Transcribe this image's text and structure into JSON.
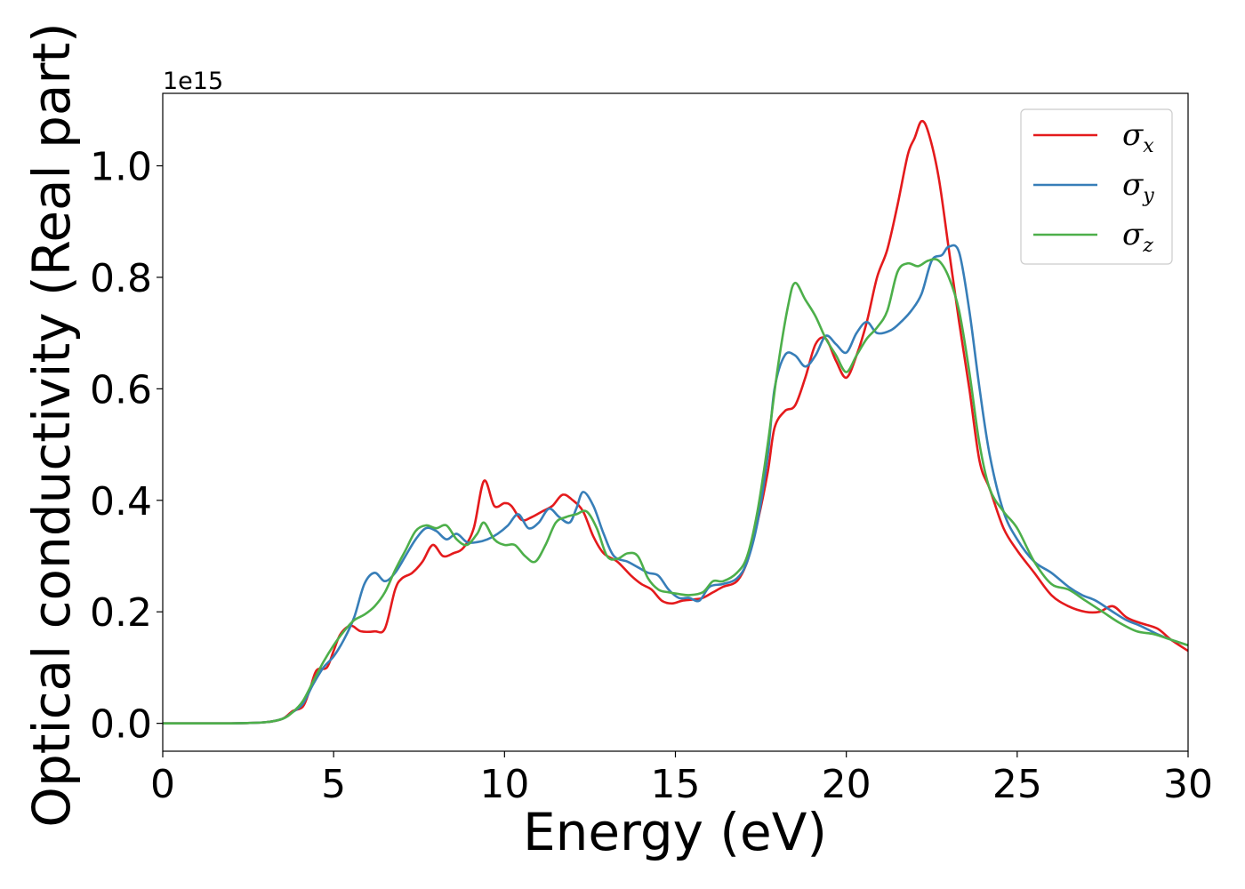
{
  "chart_data": {
    "type": "line",
    "title": "",
    "xlabel": "Energy (eV)",
    "ylabel": "Optical conductivity (Real part)",
    "y_offset_label": "1e15",
    "xlim": [
      0,
      30
    ],
    "ylim": [
      -0.05,
      1.13
    ],
    "x_ticks": [
      0,
      5,
      10,
      15,
      20,
      25,
      30
    ],
    "x_tick_labels": [
      "0",
      "5",
      "10",
      "15",
      "20",
      "25",
      "30"
    ],
    "y_ticks": [
      0.0,
      0.2,
      0.4,
      0.6,
      0.8,
      1.0
    ],
    "y_tick_labels": [
      "0.0",
      "0.2",
      "0.4",
      "0.6",
      "0.8",
      "1.0"
    ],
    "grid": false,
    "legend_position": "top-right",
    "series": [
      {
        "name": "σx",
        "symbol": "σ",
        "subscript": "x",
        "color": "#e41a1c",
        "points": [
          [
            0,
            0
          ],
          [
            2,
            0
          ],
          [
            3,
            0.002
          ],
          [
            3.5,
            0.008
          ],
          [
            3.8,
            0.022
          ],
          [
            4.1,
            0.03
          ],
          [
            4.3,
            0.06
          ],
          [
            4.5,
            0.095
          ],
          [
            4.8,
            0.1
          ],
          [
            5.0,
            0.13
          ],
          [
            5.2,
            0.16
          ],
          [
            5.5,
            0.175
          ],
          [
            5.8,
            0.165
          ],
          [
            6.2,
            0.165
          ],
          [
            6.5,
            0.17
          ],
          [
            6.8,
            0.24
          ],
          [
            7.0,
            0.26
          ],
          [
            7.3,
            0.27
          ],
          [
            7.6,
            0.29
          ],
          [
            7.9,
            0.32
          ],
          [
            8.2,
            0.3
          ],
          [
            8.5,
            0.305
          ],
          [
            8.8,
            0.315
          ],
          [
            9.1,
            0.35
          ],
          [
            9.4,
            0.435
          ],
          [
            9.7,
            0.39
          ],
          [
            10.0,
            0.395
          ],
          [
            10.2,
            0.39
          ],
          [
            10.5,
            0.365
          ],
          [
            10.8,
            0.37
          ],
          [
            11.1,
            0.38
          ],
          [
            11.4,
            0.39
          ],
          [
            11.7,
            0.41
          ],
          [
            12.0,
            0.4
          ],
          [
            12.3,
            0.38
          ],
          [
            12.6,
            0.335
          ],
          [
            12.9,
            0.305
          ],
          [
            13.3,
            0.29
          ],
          [
            13.7,
            0.265
          ],
          [
            14.0,
            0.25
          ],
          [
            14.3,
            0.24
          ],
          [
            14.6,
            0.22
          ],
          [
            14.9,
            0.215
          ],
          [
            15.2,
            0.22
          ],
          [
            15.5,
            0.222
          ],
          [
            15.8,
            0.225
          ],
          [
            16.1,
            0.235
          ],
          [
            16.4,
            0.245
          ],
          [
            16.8,
            0.255
          ],
          [
            17.1,
            0.29
          ],
          [
            17.4,
            0.36
          ],
          [
            17.7,
            0.45
          ],
          [
            17.9,
            0.53
          ],
          [
            18.2,
            0.56
          ],
          [
            18.5,
            0.57
          ],
          [
            18.8,
            0.62
          ],
          [
            19.1,
            0.68
          ],
          [
            19.4,
            0.69
          ],
          [
            19.7,
            0.65
          ],
          [
            20.0,
            0.62
          ],
          [
            20.3,
            0.66
          ],
          [
            20.6,
            0.72
          ],
          [
            20.9,
            0.8
          ],
          [
            21.2,
            0.85
          ],
          [
            21.5,
            0.93
          ],
          [
            21.8,
            1.02
          ],
          [
            22.0,
            1.05
          ],
          [
            22.2,
            1.08
          ],
          [
            22.4,
            1.06
          ],
          [
            22.7,
            0.98
          ],
          [
            23.0,
            0.85
          ],
          [
            23.3,
            0.72
          ],
          [
            23.6,
            0.6
          ],
          [
            23.9,
            0.47
          ],
          [
            24.2,
            0.42
          ],
          [
            24.6,
            0.35
          ],
          [
            25.0,
            0.31
          ],
          [
            25.5,
            0.27
          ],
          [
            26.0,
            0.23
          ],
          [
            26.5,
            0.21
          ],
          [
            27.0,
            0.2
          ],
          [
            27.4,
            0.2
          ],
          [
            27.8,
            0.21
          ],
          [
            28.2,
            0.19
          ],
          [
            28.6,
            0.18
          ],
          [
            29.1,
            0.17
          ],
          [
            29.5,
            0.15
          ],
          [
            30,
            0.13
          ]
        ]
      },
      {
        "name": "σy",
        "symbol": "σ",
        "subscript": "y",
        "color": "#377eb8",
        "points": [
          [
            0,
            0
          ],
          [
            2,
            0
          ],
          [
            3,
            0.002
          ],
          [
            3.5,
            0.008
          ],
          [
            3.8,
            0.02
          ],
          [
            4.1,
            0.035
          ],
          [
            4.4,
            0.07
          ],
          [
            4.7,
            0.1
          ],
          [
            5.0,
            0.12
          ],
          [
            5.3,
            0.15
          ],
          [
            5.6,
            0.19
          ],
          [
            5.9,
            0.25
          ],
          [
            6.2,
            0.27
          ],
          [
            6.5,
            0.255
          ],
          [
            6.8,
            0.27
          ],
          [
            7.1,
            0.3
          ],
          [
            7.4,
            0.33
          ],
          [
            7.7,
            0.35
          ],
          [
            8.0,
            0.345
          ],
          [
            8.3,
            0.33
          ],
          [
            8.6,
            0.34
          ],
          [
            8.9,
            0.325
          ],
          [
            9.2,
            0.325
          ],
          [
            9.5,
            0.33
          ],
          [
            9.8,
            0.34
          ],
          [
            10.1,
            0.355
          ],
          [
            10.4,
            0.375
          ],
          [
            10.7,
            0.35
          ],
          [
            11.0,
            0.36
          ],
          [
            11.3,
            0.385
          ],
          [
            11.6,
            0.37
          ],
          [
            11.9,
            0.36
          ],
          [
            12.1,
            0.385
          ],
          [
            12.3,
            0.415
          ],
          [
            12.6,
            0.39
          ],
          [
            12.9,
            0.34
          ],
          [
            13.2,
            0.3
          ],
          [
            13.6,
            0.29
          ],
          [
            13.9,
            0.28
          ],
          [
            14.2,
            0.27
          ],
          [
            14.5,
            0.265
          ],
          [
            14.8,
            0.24
          ],
          [
            15.1,
            0.225
          ],
          [
            15.4,
            0.225
          ],
          [
            15.7,
            0.22
          ],
          [
            16.0,
            0.245
          ],
          [
            16.4,
            0.25
          ],
          [
            16.8,
            0.26
          ],
          [
            17.1,
            0.29
          ],
          [
            17.4,
            0.36
          ],
          [
            17.7,
            0.48
          ],
          [
            17.9,
            0.6
          ],
          [
            18.2,
            0.66
          ],
          [
            18.5,
            0.66
          ],
          [
            18.8,
            0.64
          ],
          [
            19.1,
            0.66
          ],
          [
            19.4,
            0.695
          ],
          [
            19.7,
            0.68
          ],
          [
            20.0,
            0.665
          ],
          [
            20.3,
            0.7
          ],
          [
            20.6,
            0.72
          ],
          [
            20.9,
            0.7
          ],
          [
            21.3,
            0.705
          ],
          [
            21.6,
            0.72
          ],
          [
            21.9,
            0.74
          ],
          [
            22.2,
            0.77
          ],
          [
            22.5,
            0.83
          ],
          [
            22.8,
            0.84
          ],
          [
            23.0,
            0.855
          ],
          [
            23.3,
            0.845
          ],
          [
            23.6,
            0.74
          ],
          [
            23.9,
            0.6
          ],
          [
            24.2,
            0.48
          ],
          [
            24.6,
            0.38
          ],
          [
            25.0,
            0.33
          ],
          [
            25.5,
            0.29
          ],
          [
            26.0,
            0.27
          ],
          [
            26.5,
            0.245
          ],
          [
            26.9,
            0.23
          ],
          [
            27.3,
            0.22
          ],
          [
            27.8,
            0.2
          ],
          [
            28.2,
            0.185
          ],
          [
            28.6,
            0.175
          ],
          [
            29.1,
            0.16
          ],
          [
            29.5,
            0.15
          ],
          [
            30,
            0.14
          ]
        ]
      },
      {
        "name": "σz",
        "symbol": "σ",
        "subscript": "z",
        "color": "#4daf4a",
        "points": [
          [
            0,
            0
          ],
          [
            2,
            0
          ],
          [
            3,
            0.002
          ],
          [
            3.5,
            0.008
          ],
          [
            3.8,
            0.02
          ],
          [
            4.1,
            0.04
          ],
          [
            4.4,
            0.075
          ],
          [
            4.7,
            0.11
          ],
          [
            5.0,
            0.14
          ],
          [
            5.3,
            0.165
          ],
          [
            5.6,
            0.185
          ],
          [
            5.9,
            0.195
          ],
          [
            6.2,
            0.21
          ],
          [
            6.5,
            0.235
          ],
          [
            6.8,
            0.275
          ],
          [
            7.1,
            0.31
          ],
          [
            7.4,
            0.345
          ],
          [
            7.7,
            0.355
          ],
          [
            8.0,
            0.35
          ],
          [
            8.3,
            0.355
          ],
          [
            8.6,
            0.33
          ],
          [
            8.9,
            0.32
          ],
          [
            9.2,
            0.34
          ],
          [
            9.4,
            0.36
          ],
          [
            9.7,
            0.33
          ],
          [
            10.0,
            0.32
          ],
          [
            10.3,
            0.32
          ],
          [
            10.6,
            0.3
          ],
          [
            10.9,
            0.29
          ],
          [
            11.2,
            0.32
          ],
          [
            11.5,
            0.36
          ],
          [
            11.8,
            0.37
          ],
          [
            12.1,
            0.375
          ],
          [
            12.4,
            0.38
          ],
          [
            12.7,
            0.35
          ],
          [
            13.0,
            0.3
          ],
          [
            13.3,
            0.295
          ],
          [
            13.6,
            0.305
          ],
          [
            13.9,
            0.3
          ],
          [
            14.2,
            0.26
          ],
          [
            14.5,
            0.24
          ],
          [
            14.8,
            0.235
          ],
          [
            15.1,
            0.232
          ],
          [
            15.4,
            0.23
          ],
          [
            15.8,
            0.235
          ],
          [
            16.1,
            0.255
          ],
          [
            16.4,
            0.255
          ],
          [
            16.8,
            0.27
          ],
          [
            17.1,
            0.3
          ],
          [
            17.4,
            0.38
          ],
          [
            17.7,
            0.5
          ],
          [
            18.0,
            0.64
          ],
          [
            18.3,
            0.75
          ],
          [
            18.5,
            0.79
          ],
          [
            18.8,
            0.76
          ],
          [
            19.1,
            0.73
          ],
          [
            19.4,
            0.69
          ],
          [
            19.7,
            0.66
          ],
          [
            20.0,
            0.63
          ],
          [
            20.3,
            0.66
          ],
          [
            20.6,
            0.69
          ],
          [
            20.9,
            0.71
          ],
          [
            21.2,
            0.74
          ],
          [
            21.5,
            0.81
          ],
          [
            21.8,
            0.825
          ],
          [
            22.1,
            0.82
          ],
          [
            22.4,
            0.83
          ],
          [
            22.7,
            0.83
          ],
          [
            23.0,
            0.8
          ],
          [
            23.3,
            0.74
          ],
          [
            23.6,
            0.63
          ],
          [
            23.9,
            0.5
          ],
          [
            24.2,
            0.42
          ],
          [
            24.6,
            0.38
          ],
          [
            25.0,
            0.35
          ],
          [
            25.5,
            0.29
          ],
          [
            26.0,
            0.25
          ],
          [
            26.5,
            0.24
          ],
          [
            27.0,
            0.22
          ],
          [
            27.5,
            0.2
          ],
          [
            28.0,
            0.18
          ],
          [
            28.5,
            0.165
          ],
          [
            29.0,
            0.16
          ],
          [
            29.5,
            0.15
          ],
          [
            30,
            0.14
          ]
        ]
      }
    ]
  }
}
